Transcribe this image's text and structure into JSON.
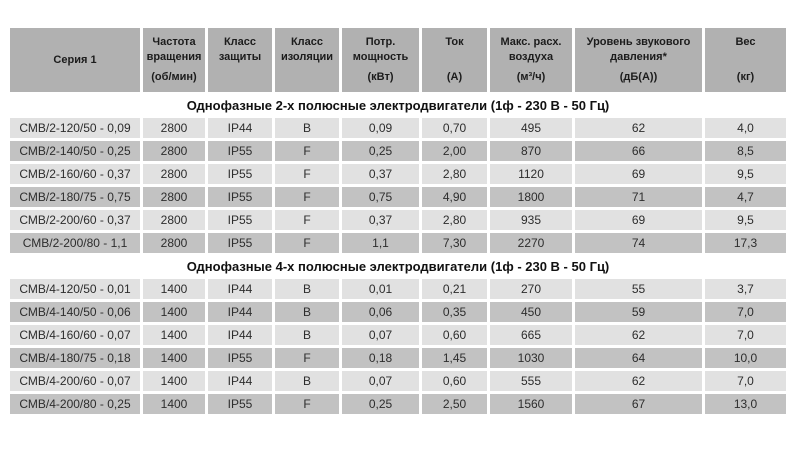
{
  "table": {
    "columns": [
      {
        "id": "series",
        "label": "Серия 1",
        "unit": ""
      },
      {
        "id": "speed",
        "label": "Частота вращения",
        "unit": "(об/мин)"
      },
      {
        "id": "protection",
        "label": "Класс защиты",
        "unit": ""
      },
      {
        "id": "insulation",
        "label": "Класс изоляции",
        "unit": ""
      },
      {
        "id": "power",
        "label": "Потр. мощность",
        "unit": "(кВт)"
      },
      {
        "id": "current",
        "label": "Ток",
        "unit": "(А)"
      },
      {
        "id": "airflow",
        "label": "Макс. расх. воздуха",
        "unit": "(м³/ч)"
      },
      {
        "id": "noise",
        "label": "Уровень звукового давления*",
        "unit": "(дБ(А))"
      },
      {
        "id": "weight",
        "label": "Вес",
        "unit": "(кг)"
      }
    ],
    "sections": [
      {
        "title": "Однофазные 2-х полюсные электродвигатели (1ф - 230 В - 50 Гц)",
        "rows": [
          [
            "СМВ/2-120/50 - 0,09",
            "2800",
            "IP44",
            "B",
            "0,09",
            "0,70",
            "495",
            "62",
            "4,0"
          ],
          [
            "СМВ/2-140/50 - 0,25",
            "2800",
            "IP55",
            "F",
            "0,25",
            "2,00",
            "870",
            "66",
            "8,5"
          ],
          [
            "СМВ/2-160/60 - 0,37",
            "2800",
            "IP55",
            "F",
            "0,37",
            "2,80",
            "1120",
            "69",
            "9,5"
          ],
          [
            "СМВ/2-180/75 - 0,75",
            "2800",
            "IP55",
            "F",
            "0,75",
            "4,90",
            "1800",
            "71",
            "4,7"
          ],
          [
            "СМВ/2-200/60 - 0,37",
            "2800",
            "IP55",
            "F",
            "0,37",
            "2,80",
            "935",
            "69",
            "9,5"
          ],
          [
            "СМВ/2-200/80 - 1,1",
            "2800",
            "IP55",
            "F",
            "1,1",
            "7,30",
            "2270",
            "74",
            "17,3"
          ]
        ]
      },
      {
        "title": "Однофазные 4-х полюсные электродвигатели (1ф - 230 В - 50 Гц)",
        "rows": [
          [
            "СМВ/4-120/50 - 0,01",
            "1400",
            "IP44",
            "B",
            "0,01",
            "0,21",
            "270",
            "55",
            "3,7"
          ],
          [
            "СМВ/4-140/50 - 0,06",
            "1400",
            "IP44",
            "B",
            "0,06",
            "0,35",
            "450",
            "59",
            "7,0"
          ],
          [
            "СМВ/4-160/60 - 0,07",
            "1400",
            "IP44",
            "B",
            "0,07",
            "0,60",
            "665",
            "62",
            "7,0"
          ],
          [
            "СМВ/4-180/75 - 0,18",
            "1400",
            "IP55",
            "F",
            "0,18",
            "1,45",
            "1030",
            "64",
            "10,0"
          ],
          [
            "СМВ/4-200/60 - 0,07",
            "1400",
            "IP44",
            "B",
            "0,07",
            "0,60",
            "555",
            "62",
            "7,0"
          ],
          [
            "СМВ/4-200/80 - 0,25",
            "1400",
            "IP55",
            "F",
            "0,25",
            "2,50",
            "1560",
            "67",
            "13,0"
          ]
        ]
      }
    ]
  },
  "colors": {
    "header_bg": "#b1b1b1",
    "row_light": "#e1e1e1",
    "row_dark": "#c2c2c2",
    "section_title_bg": "#ffffff",
    "text": "#2d2d2d",
    "background": "#ffffff"
  }
}
